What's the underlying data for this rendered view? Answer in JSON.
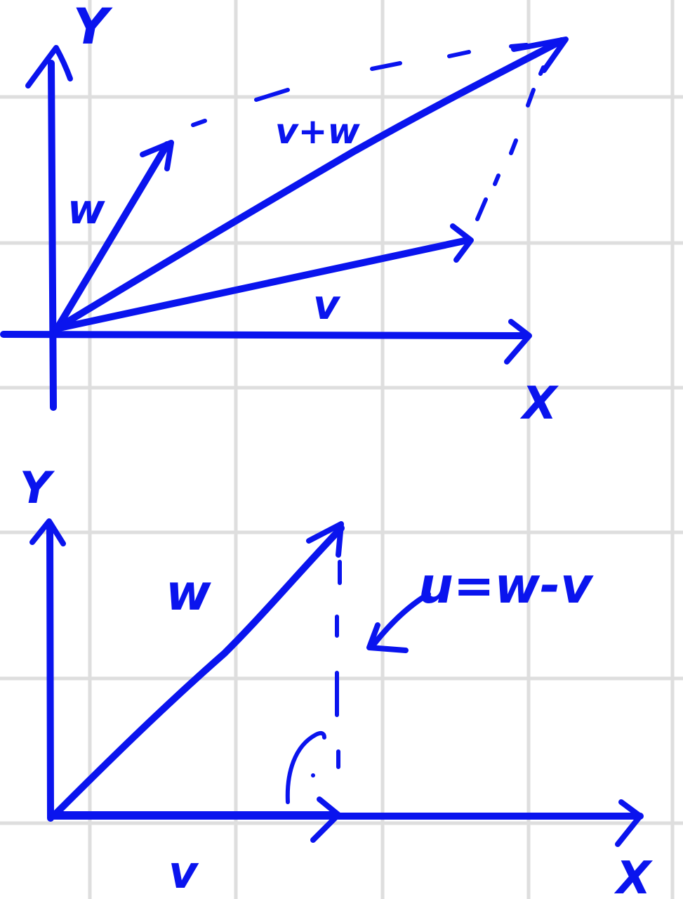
{
  "colors": {
    "ink": "#0a14ee",
    "grid": "#dedede",
    "paper": "#ffffff"
  },
  "top": {
    "axis_y_label": "Y",
    "axis_x_label": "X",
    "vector_w_label": "w",
    "vector_v_label": "v",
    "sum_label": "v+w"
  },
  "bottom": {
    "axis_y_label": "Y",
    "axis_x_label": "X",
    "vector_w_label": "w",
    "vector_v_label": "v",
    "difference_label": "u=w-v"
  }
}
